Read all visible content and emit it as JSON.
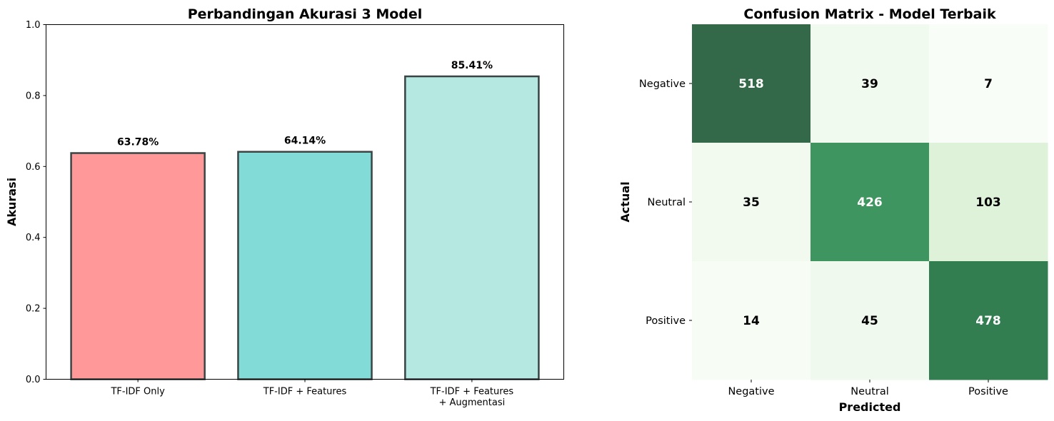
{
  "chart_data": [
    {
      "type": "bar",
      "title": "Perbandingan Akurasi 3 Model",
      "xlabel": "",
      "ylabel": "Akurasi",
      "ylim": [
        0,
        1.0
      ],
      "yticks": [
        "0.0",
        "0.2",
        "0.4",
        "0.6",
        "0.8",
        "1.0"
      ],
      "categories": [
        [
          "TF-IDF Only"
        ],
        [
          "TF-IDF + Features"
        ],
        [
          "TF-IDF + Features",
          "+ Augmentasi"
        ]
      ],
      "values": [
        0.6378,
        0.6414,
        0.8541
      ],
      "data_labels": [
        "63.78%",
        "64.14%",
        "85.41%"
      ],
      "colors": [
        "#ff9999",
        "#82dbd6",
        "#b4e8e0"
      ],
      "edge_color": "#3a4444",
      "grid": false
    },
    {
      "type": "heatmap",
      "title": "Confusion Matrix - Model Terbaik",
      "xlabel": "Predicted",
      "ylabel": "Actual",
      "x_categories": [
        "Negative",
        "Neutral",
        "Positive"
      ],
      "y_categories": [
        "Negative",
        "Neutral",
        "Positive"
      ],
      "values": [
        [
          518,
          39,
          7
        ],
        [
          35,
          426,
          103
        ],
        [
          14,
          45,
          478
        ]
      ],
      "colormap": "Greens",
      "grid": false
    }
  ]
}
